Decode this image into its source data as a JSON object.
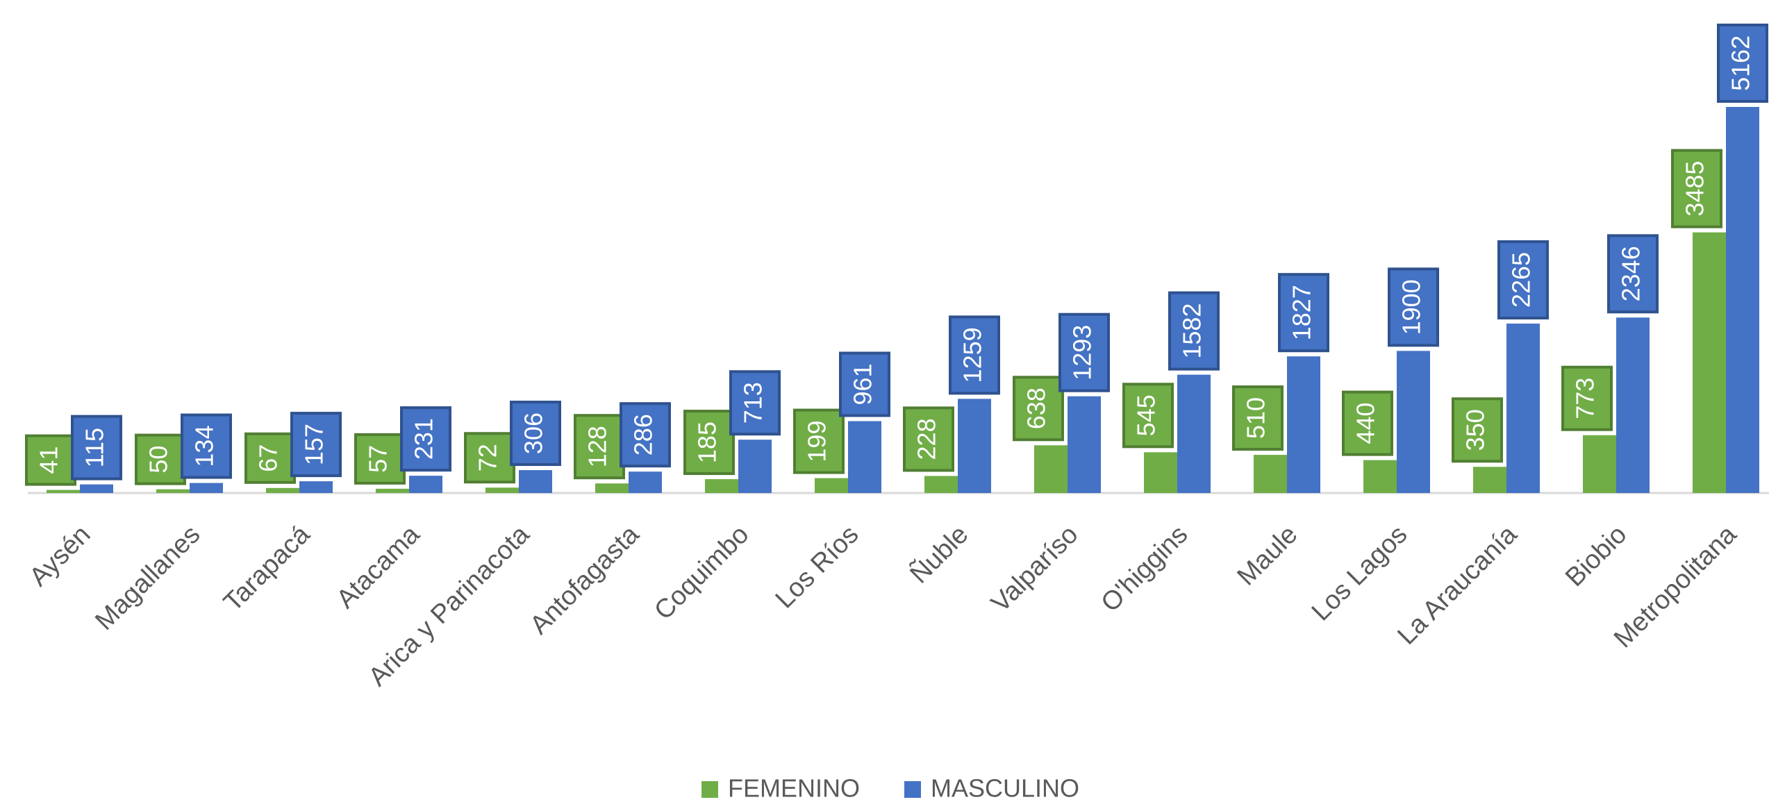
{
  "chart_data": {
    "type": "bar",
    "categories": [
      "Aysén",
      "Magallanes",
      "Tarapacá",
      "Atacama",
      "Arica y Parinacota",
      "Antofagasta",
      "Coquimbo",
      "Los Ríos",
      "Ñuble",
      "Valparíso",
      "O'higgins",
      "Maule",
      "Los Lagos",
      "La Araucanía",
      "Biobio",
      "Metropolitana"
    ],
    "series": [
      {
        "name": "FEMENINO",
        "color": "#70ad47",
        "values": [
          41,
          50,
          67,
          57,
          72,
          128,
          185,
          199,
          228,
          638,
          545,
          510,
          440,
          350,
          773,
          3485
        ]
      },
      {
        "name": "MASCULINO",
        "color": "#4472c4",
        "values": [
          115,
          134,
          157,
          231,
          306,
          286,
          713,
          961,
          1259,
          1293,
          1582,
          1827,
          1900,
          2265,
          2346,
          5162
        ]
      }
    ],
    "legend": "bottom"
  }
}
